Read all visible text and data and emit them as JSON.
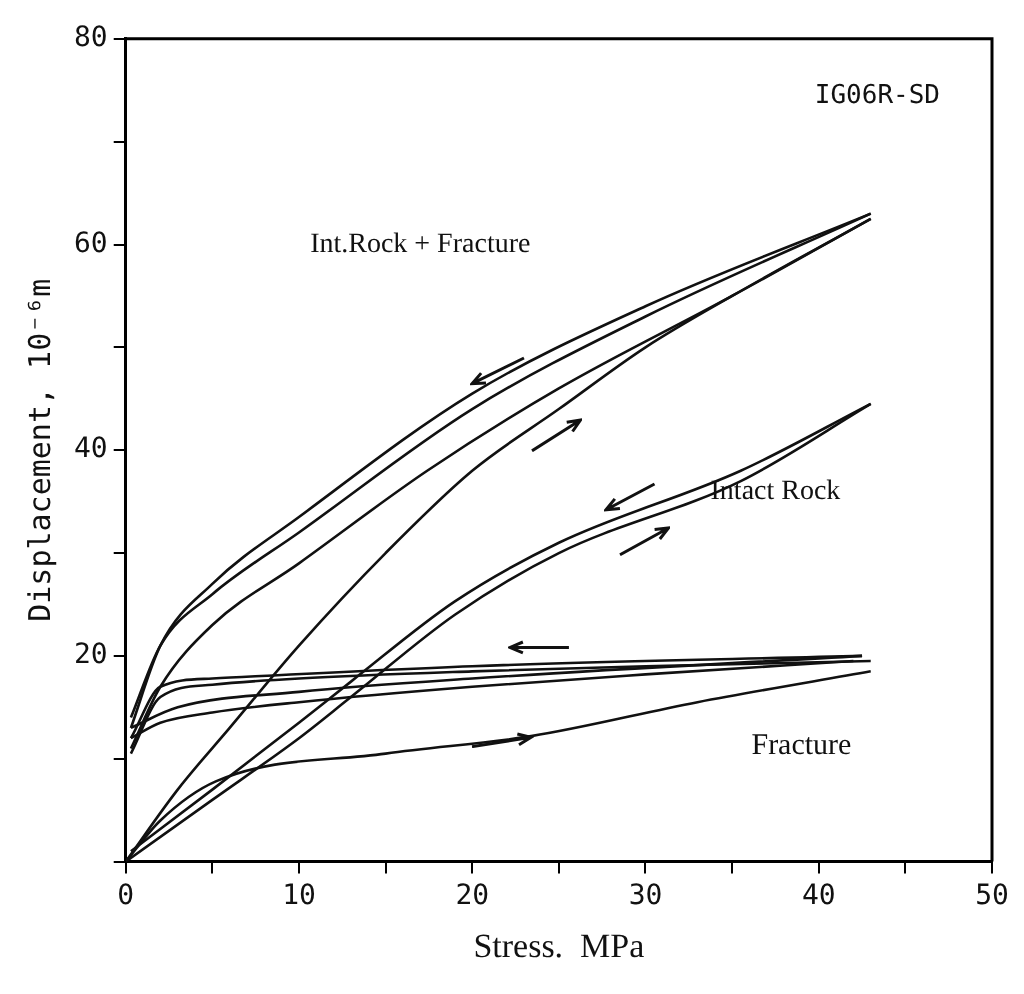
{
  "chart_data": {
    "type": "line",
    "xlabel": "Stress.  MPa",
    "ylabel": "Displacement, 10⁻⁶m",
    "xlim": [
      0,
      50
    ],
    "ylim": [
      0,
      80
    ],
    "xticks": [
      0,
      {
        "value": 5,
        "label": null
      },
      10,
      {
        "value": 15,
        "label": null
      },
      20,
      {
        "value": 25,
        "label": null
      },
      30,
      {
        "value": 35,
        "label": null
      },
      40,
      {
        "value": 45,
        "label": null
      },
      50
    ],
    "yticks": [
      {
        "value": 0,
        "label": null
      },
      {
        "value": 10,
        "label": null
      },
      20,
      {
        "value": 30,
        "label": null
      },
      40,
      {
        "value": 50,
        "label": null
      },
      60,
      {
        "value": 70,
        "label": null
      },
      80
    ],
    "grid": false,
    "legend": false,
    "marker": "none",
    "line_style": "solid",
    "annotations": [
      "IG06R-SD",
      "Int.Rock + Fracture",
      "Intact Rock",
      "Fracture"
    ],
    "series": [
      {
        "color": "#111111",
        "x": [
          0,
          3,
          6,
          10,
          15,
          20,
          25,
          30,
          35,
          43
        ],
        "values": [
          0,
          7,
          13,
          21,
          30,
          38,
          44,
          50,
          55,
          62.5
        ]
      },
      {
        "color": "#111111",
        "x": [
          0.3,
          2,
          5,
          10,
          17.4,
          25,
          35,
          43
        ],
        "values": [
          11,
          17,
          23,
          29,
          38,
          46,
          55,
          62.5
        ]
      },
      {
        "color": "#111111",
        "x": [
          0.3,
          2,
          5,
          10,
          20,
          30,
          43
        ],
        "values": [
          14,
          21,
          26,
          32,
          44,
          53,
          63
        ]
      },
      {
        "color": "#111111",
        "x": [
          43,
          30,
          20,
          10,
          5,
          2,
          0.3
        ],
        "values": [
          63,
          54,
          45.5,
          33.5,
          27,
          21,
          13
        ]
      },
      {
        "color": "#111111",
        "x": [
          0,
          5,
          10,
          13,
          19,
          25,
          35.5,
          43
        ],
        "values": [
          0,
          6,
          12,
          16,
          24,
          30,
          37,
          44.5
        ]
      },
      {
        "color": "#111111",
        "x": [
          43,
          35.5,
          25,
          19,
          13,
          10,
          5,
          0.3
        ],
        "values": [
          44.5,
          38,
          31,
          25.3,
          17.5,
          13.5,
          7,
          1
        ]
      },
      {
        "color": "#111111",
        "x": [
          0,
          2,
          5.2,
          15,
          23.4,
          33,
          43
        ],
        "values": [
          0,
          4,
          7.8,
          10.5,
          12.2,
          15.5,
          18.5
        ]
      },
      {
        "color": "#111111",
        "x": [
          43,
          30,
          20,
          10,
          5,
          2,
          0.3
        ],
        "values": [
          19.5,
          19,
          18.5,
          17.8,
          17.2,
          16,
          10.5
        ]
      },
      {
        "color": "#111111",
        "x": [
          0.3,
          2,
          5,
          10,
          20,
          30,
          42
        ],
        "values": [
          12,
          13.5,
          14.5,
          15.5,
          17,
          18.2,
          19.5
        ]
      },
      {
        "color": "#111111",
        "x": [
          42.5,
          20,
          5,
          2,
          0.3
        ],
        "values": [
          20,
          19,
          17.8,
          17,
          12
        ]
      },
      {
        "color": "#111111",
        "x": [
          0.3,
          3,
          10,
          20,
          42.5
        ],
        "values": [
          13,
          15,
          16.5,
          17.8,
          20
        ]
      }
    ]
  }
}
